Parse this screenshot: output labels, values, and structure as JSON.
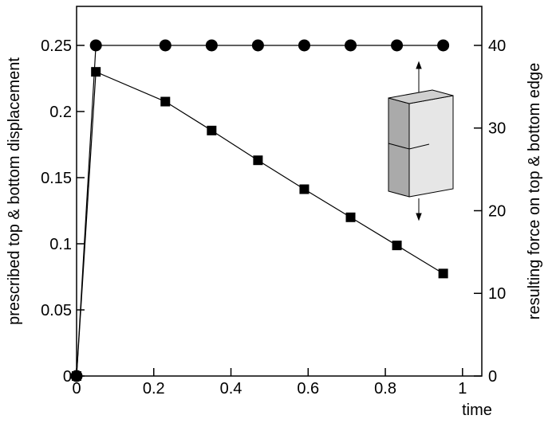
{
  "chart_data": {
    "type": "line",
    "x_label": "time",
    "y_label": "prescribed top & bottom displacement",
    "y2_label": "resulting force on top & bottom edge",
    "x": [
      0,
      0.05,
      0.23,
      0.35,
      0.47,
      0.59,
      0.71,
      0.83,
      0.95
    ],
    "series": [
      {
        "marker": "circle",
        "color": "#000000",
        "values": [
          0,
          0.25,
          0.25,
          0.25,
          0.25,
          0.25,
          0.25,
          0.25,
          0.25
        ]
      },
      {
        "marker": "square",
        "color": "#000000",
        "axis": "y2",
        "values": [
          0,
          36.8,
          33.2,
          29.7,
          26.1,
          22.6,
          19.2,
          15.8,
          12.4
        ]
      }
    ],
    "xlim": [
      0,
      1.05
    ],
    "xticks": [
      0,
      0.2,
      0.4,
      0.6,
      0.8,
      1
    ],
    "ylim": [
      0,
      0.2795
    ],
    "yticks": [
      0,
      0.05,
      0.1,
      0.15,
      0.2,
      0.25
    ],
    "y2lim": [
      0,
      44.72
    ],
    "y2ticks": [
      0,
      10,
      20,
      30,
      40
    ]
  }
}
